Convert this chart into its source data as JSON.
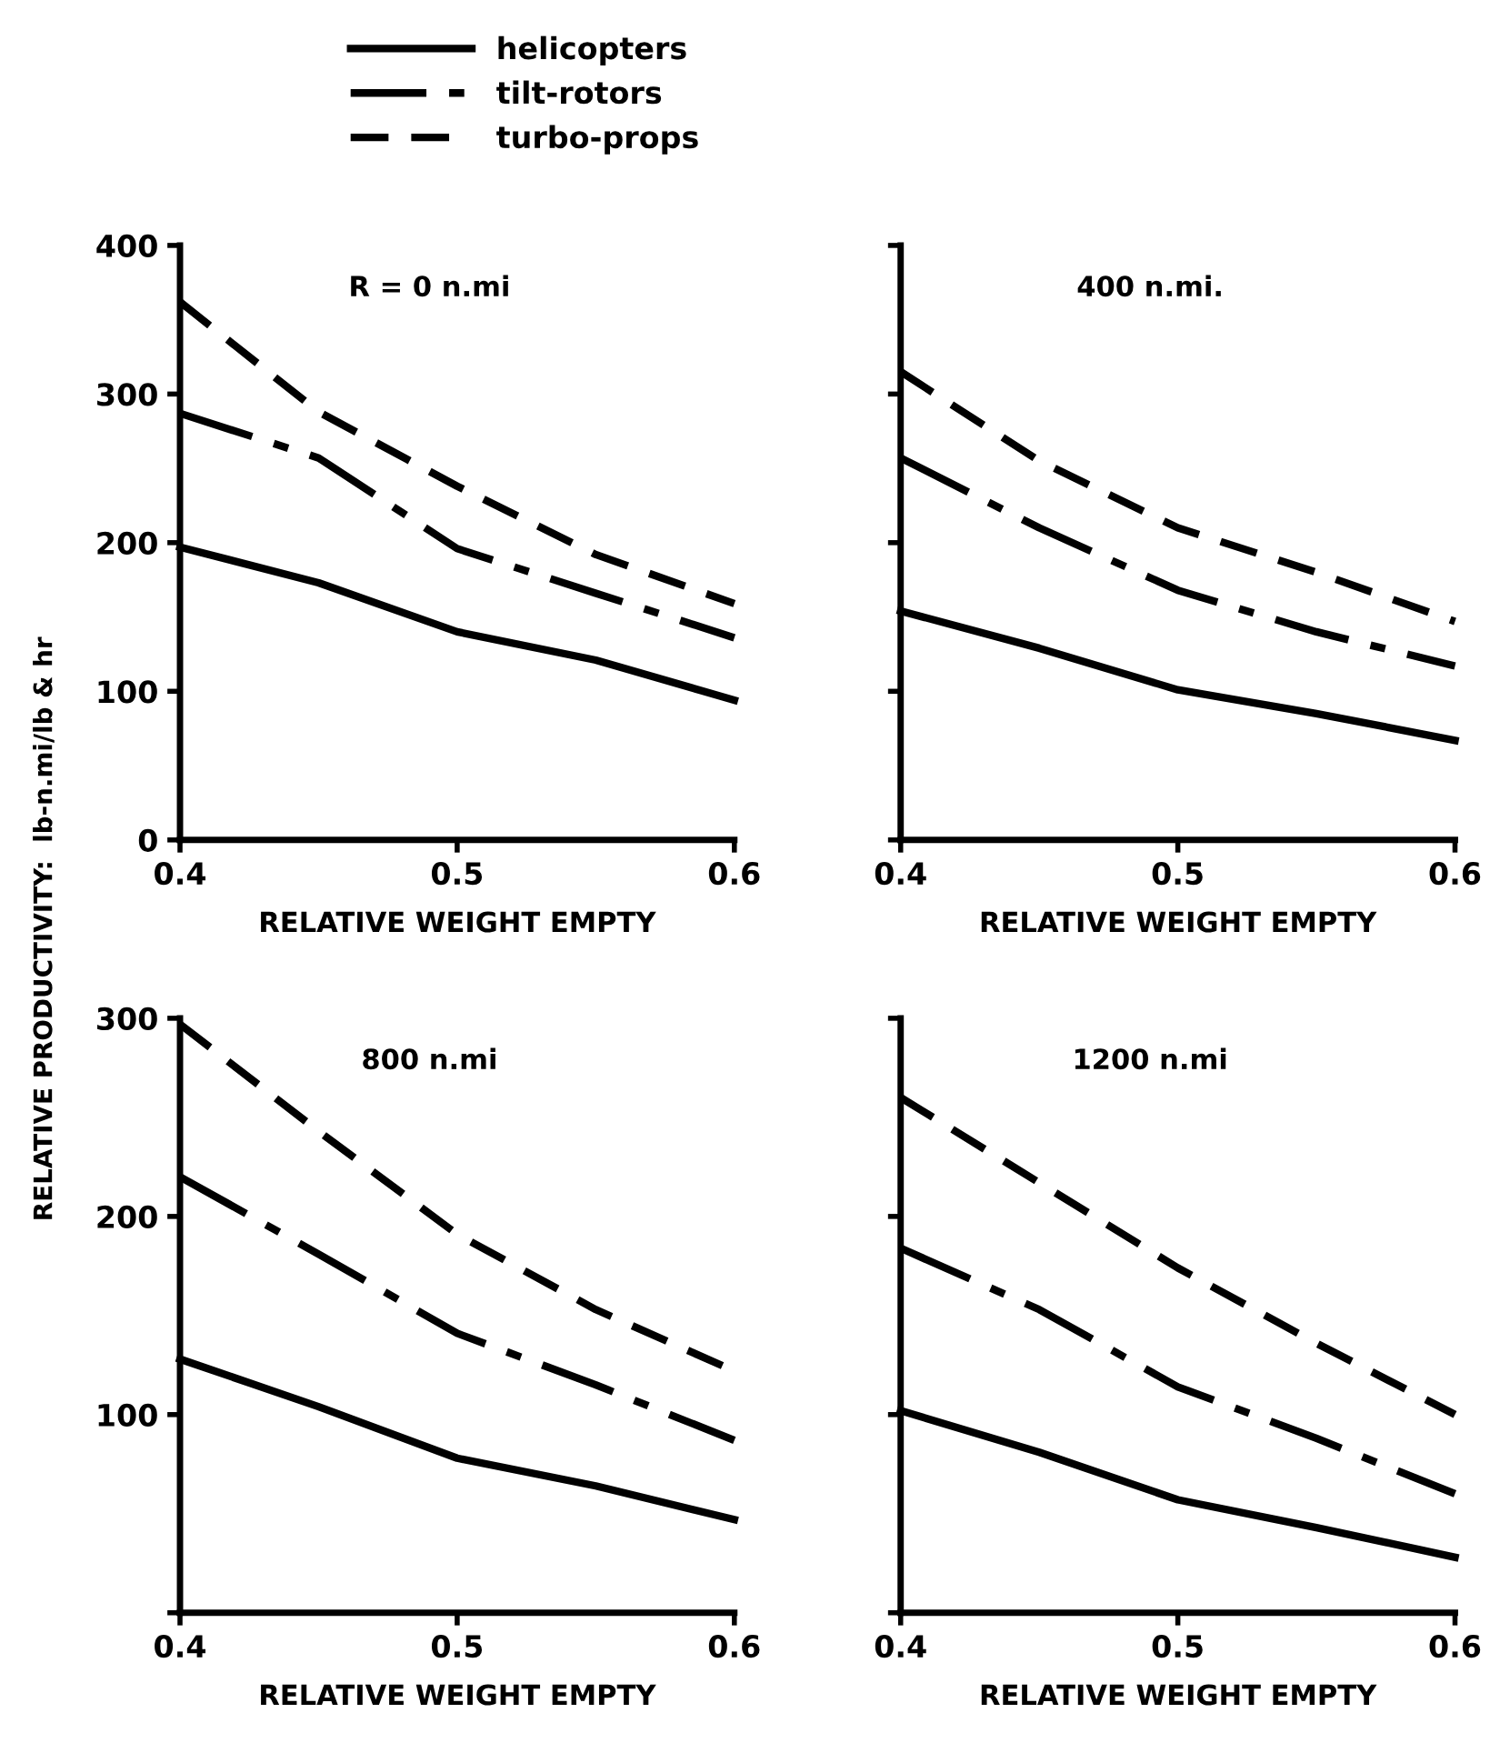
{
  "chart_data": [
    {
      "type": "line",
      "title": "R = 0 n.mi",
      "xlabel": "RELATIVE WEIGHT EMPTY",
      "ylabel": "RELATIVE PRODUCTIVITY:  lb-n.mi/lb & hr",
      "legend": "top",
      "x": [
        0.4,
        0.45,
        0.5,
        0.55,
        0.6
      ],
      "xlim": [
        0.4,
        0.6
      ],
      "xticks": [
        0.4,
        0.5,
        0.6
      ],
      "ylim": [
        0,
        400
      ],
      "yticks": [
        0,
        100,
        200,
        300,
        400
      ],
      "marker": "none",
      "series": [
        {
          "name": "helicopters",
          "color": "#000000",
          "line_style": "solid",
          "values": [
            197,
            173,
            140,
            121,
            94
          ]
        },
        {
          "name": "tilt-rotors",
          "color": "#000000",
          "line_style": "dashdot",
          "values": [
            287,
            257,
            196,
            166,
            136
          ]
        },
        {
          "name": "turbo-props",
          "color": "#000000",
          "line_style": "dashed",
          "values": [
            362,
            288,
            238,
            192,
            159
          ]
        }
      ]
    },
    {
      "type": "line",
      "title": "400 n.mi.",
      "xlabel": "RELATIVE WEIGHT EMPTY",
      "x": [
        0.4,
        0.45,
        0.5,
        0.55,
        0.6
      ],
      "xlim": [
        0.4,
        0.6
      ],
      "xticks": [
        0.4,
        0.5,
        0.6
      ],
      "ylim": [
        0,
        400
      ],
      "yticks": [
        0,
        100,
        200,
        300,
        400
      ],
      "tick_labels": "x",
      "marker": "none",
      "series": [
        {
          "color": "#000000",
          "line_style": "solid",
          "values": [
            154,
            129,
            101,
            85,
            67
          ]
        },
        {
          "color": "#000000",
          "line_style": "dashdot",
          "values": [
            257,
            210,
            168,
            140,
            117
          ]
        },
        {
          "color": "#000000",
          "line_style": "dashed",
          "values": [
            315,
            255,
            210,
            180,
            147
          ]
        }
      ]
    },
    {
      "type": "line",
      "title": "800 n.mi",
      "xlabel": "RELATIVE WEIGHT EMPTY",
      "x": [
        0.4,
        0.45,
        0.5,
        0.55,
        0.6
      ],
      "xlim": [
        0.4,
        0.6
      ],
      "xticks": [
        0.4,
        0.5,
        0.6
      ],
      "ylim": [
        0,
        300
      ],
      "yticks": [
        {
          "value": 0,
          "label": null
        },
        100,
        200,
        300
      ],
      "marker": "none",
      "series": [
        {
          "color": "#000000",
          "line_style": "solid",
          "values": [
            128,
            104,
            78,
            64,
            47
          ]
        },
        {
          "color": "#000000",
          "line_style": "dashdot",
          "values": [
            220,
            181,
            141,
            115,
            87
          ]
        },
        {
          "color": "#000000",
          "line_style": "dashed",
          "values": [
            297,
            243,
            191,
            153,
            122
          ]
        }
      ]
    },
    {
      "type": "line",
      "title": "1200 n.mi",
      "xlabel": "RELATIVE WEIGHT EMPTY",
      "x": [
        0.4,
        0.45,
        0.5,
        0.55,
        0.6
      ],
      "xlim": [
        0.4,
        0.6
      ],
      "xticks": [
        0.4,
        0.5,
        0.6
      ],
      "ylim": [
        0,
        300
      ],
      "yticks": [
        0,
        100,
        200,
        300
      ],
      "tick_labels": "x",
      "marker": "none",
      "series": [
        {
          "color": "#000000",
          "line_style": "solid",
          "values": [
            102,
            81,
            57,
            43,
            28
          ]
        },
        {
          "color": "#000000",
          "line_style": "dashdot",
          "values": [
            184,
            153,
            114,
            88,
            60
          ]
        },
        {
          "color": "#000000",
          "line_style": "dashed",
          "values": [
            260,
            217,
            174,
            136,
            100
          ]
        }
      ]
    }
  ]
}
